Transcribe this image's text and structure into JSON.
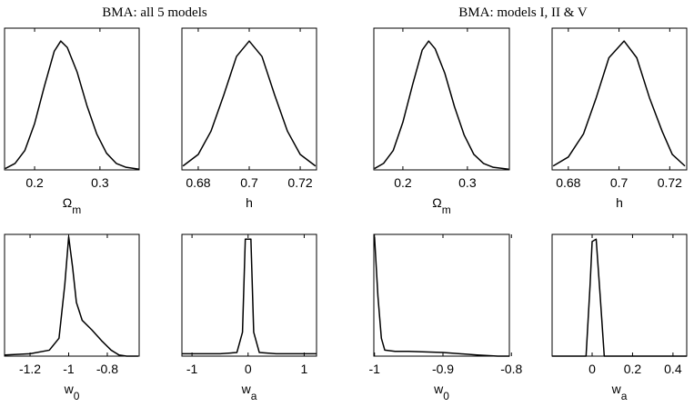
{
  "titles": [
    "BMA: all 5 models",
    "BMA: models I, II & V"
  ],
  "chart_data": [
    {
      "type": "line",
      "xlabel": [
        "Ω",
        "m"
      ],
      "xlim": [
        0.154,
        0.36
      ],
      "ylim": [
        0,
        1.1
      ],
      "xticks": [
        0.2,
        0.3
      ],
      "x": [
        0.155,
        0.17,
        0.185,
        0.2,
        0.215,
        0.23,
        0.24,
        0.25,
        0.265,
        0.28,
        0.295,
        0.31,
        0.325,
        0.34,
        0.36
      ],
      "values": [
        0.01,
        0.05,
        0.15,
        0.36,
        0.65,
        0.92,
        1.0,
        0.95,
        0.76,
        0.5,
        0.28,
        0.13,
        0.05,
        0.02,
        0.005
      ],
      "color": "#000000"
    },
    {
      "type": "line",
      "xlabel": [
        "h"
      ],
      "xlim": [
        0.6736,
        0.7264
      ],
      "ylim": [
        0,
        1.1
      ],
      "xticks": [
        0.68,
        0.7,
        0.72
      ],
      "x": [
        0.674,
        0.68,
        0.685,
        0.69,
        0.695,
        0.7,
        0.705,
        0.71,
        0.715,
        0.72,
        0.726
      ],
      "values": [
        0.03,
        0.12,
        0.3,
        0.58,
        0.88,
        1.0,
        0.88,
        0.58,
        0.3,
        0.12,
        0.03
      ],
      "color": "#000000"
    },
    {
      "type": "line",
      "xlabel": [
        "Ω",
        "m"
      ],
      "xlim": [
        0.155,
        0.365
      ],
      "ylim": [
        0,
        1.1
      ],
      "xticks": [
        0.2,
        0.3
      ],
      "x": [
        0.156,
        0.17,
        0.185,
        0.2,
        0.215,
        0.23,
        0.24,
        0.25,
        0.265,
        0.28,
        0.295,
        0.31,
        0.325,
        0.34,
        0.364
      ],
      "values": [
        0.01,
        0.05,
        0.15,
        0.37,
        0.66,
        0.93,
        1.0,
        0.94,
        0.75,
        0.49,
        0.27,
        0.12,
        0.05,
        0.02,
        0.005
      ],
      "color": "#000000"
    },
    {
      "type": "line",
      "xlabel": [
        "h"
      ],
      "xlim": [
        0.6736,
        0.7267
      ],
      "ylim": [
        0,
        1.1
      ],
      "xticks": [
        0.68,
        0.7,
        0.72
      ],
      "x": [
        0.674,
        0.68,
        0.686,
        0.691,
        0.696,
        0.702,
        0.707,
        0.712,
        0.717,
        0.721,
        0.726
      ],
      "values": [
        0.03,
        0.1,
        0.28,
        0.56,
        0.87,
        1.0,
        0.87,
        0.56,
        0.3,
        0.12,
        0.03
      ],
      "color": "#000000"
    },
    {
      "type": "line",
      "xlabel": [
        "w",
        "0"
      ],
      "xlim": [
        -1.332,
        -0.635
      ],
      "ylim": [
        0,
        1.02
      ],
      "xticks": [
        -1.2,
        -1,
        -0.8
      ],
      "x": [
        -1.33,
        -1.2,
        -1.1,
        -1.05,
        -1.02,
        -1.0,
        -0.98,
        -0.96,
        -0.93,
        -0.88,
        -0.83,
        -0.78,
        -0.74,
        -0.7,
        -0.64
      ],
      "values": [
        0.01,
        0.02,
        0.05,
        0.15,
        0.6,
        1.0,
        0.75,
        0.45,
        0.3,
        0.22,
        0.13,
        0.05,
        0.01,
        0,
        0
      ],
      "color": "#000000"
    },
    {
      "type": "line",
      "xlabel": [
        "w",
        "a"
      ],
      "xlim": [
        -1.18,
        1.22
      ],
      "ylim": [
        0,
        1.02
      ],
      "xticks": [
        -1,
        0,
        1
      ],
      "x": [
        -1.18,
        -0.5,
        -0.2,
        -0.1,
        -0.05,
        0.05,
        0.1,
        0.2,
        0.5,
        1.22
      ],
      "values": [
        0.02,
        0.02,
        0.03,
        0.2,
        0.98,
        0.98,
        0.2,
        0.03,
        0.02,
        0.02
      ],
      "color": "#000000"
    },
    {
      "type": "line",
      "xlabel": [
        "w",
        "0"
      ],
      "xlim": [
        -1.001,
        -0.803
      ],
      "ylim": [
        0,
        1.02
      ],
      "xticks": [
        -1,
        -0.9,
        -0.8
      ],
      "x": [
        -1.0,
        -0.995,
        -0.99,
        -0.985,
        -0.97,
        -0.95,
        -0.9,
        -0.85,
        -0.82,
        -0.803
      ],
      "values": [
        1.0,
        0.5,
        0.15,
        0.05,
        0.04,
        0.04,
        0.03,
        0.01,
        0,
        0
      ],
      "color": "#000000"
    },
    {
      "type": "line",
      "xlabel": [
        "w",
        "a"
      ],
      "xlim": [
        -0.198,
        0.468
      ],
      "ylim": [
        0,
        1.02
      ],
      "xticks": [
        0,
        0.2,
        0.4
      ],
      "x": [
        -0.198,
        -0.03,
        -0.01,
        0.0,
        0.02,
        0.04,
        0.06,
        0.468
      ],
      "values": [
        0,
        0,
        0.6,
        0.96,
        0.98,
        0.5,
        0,
        0
      ],
      "color": "#000000"
    }
  ]
}
